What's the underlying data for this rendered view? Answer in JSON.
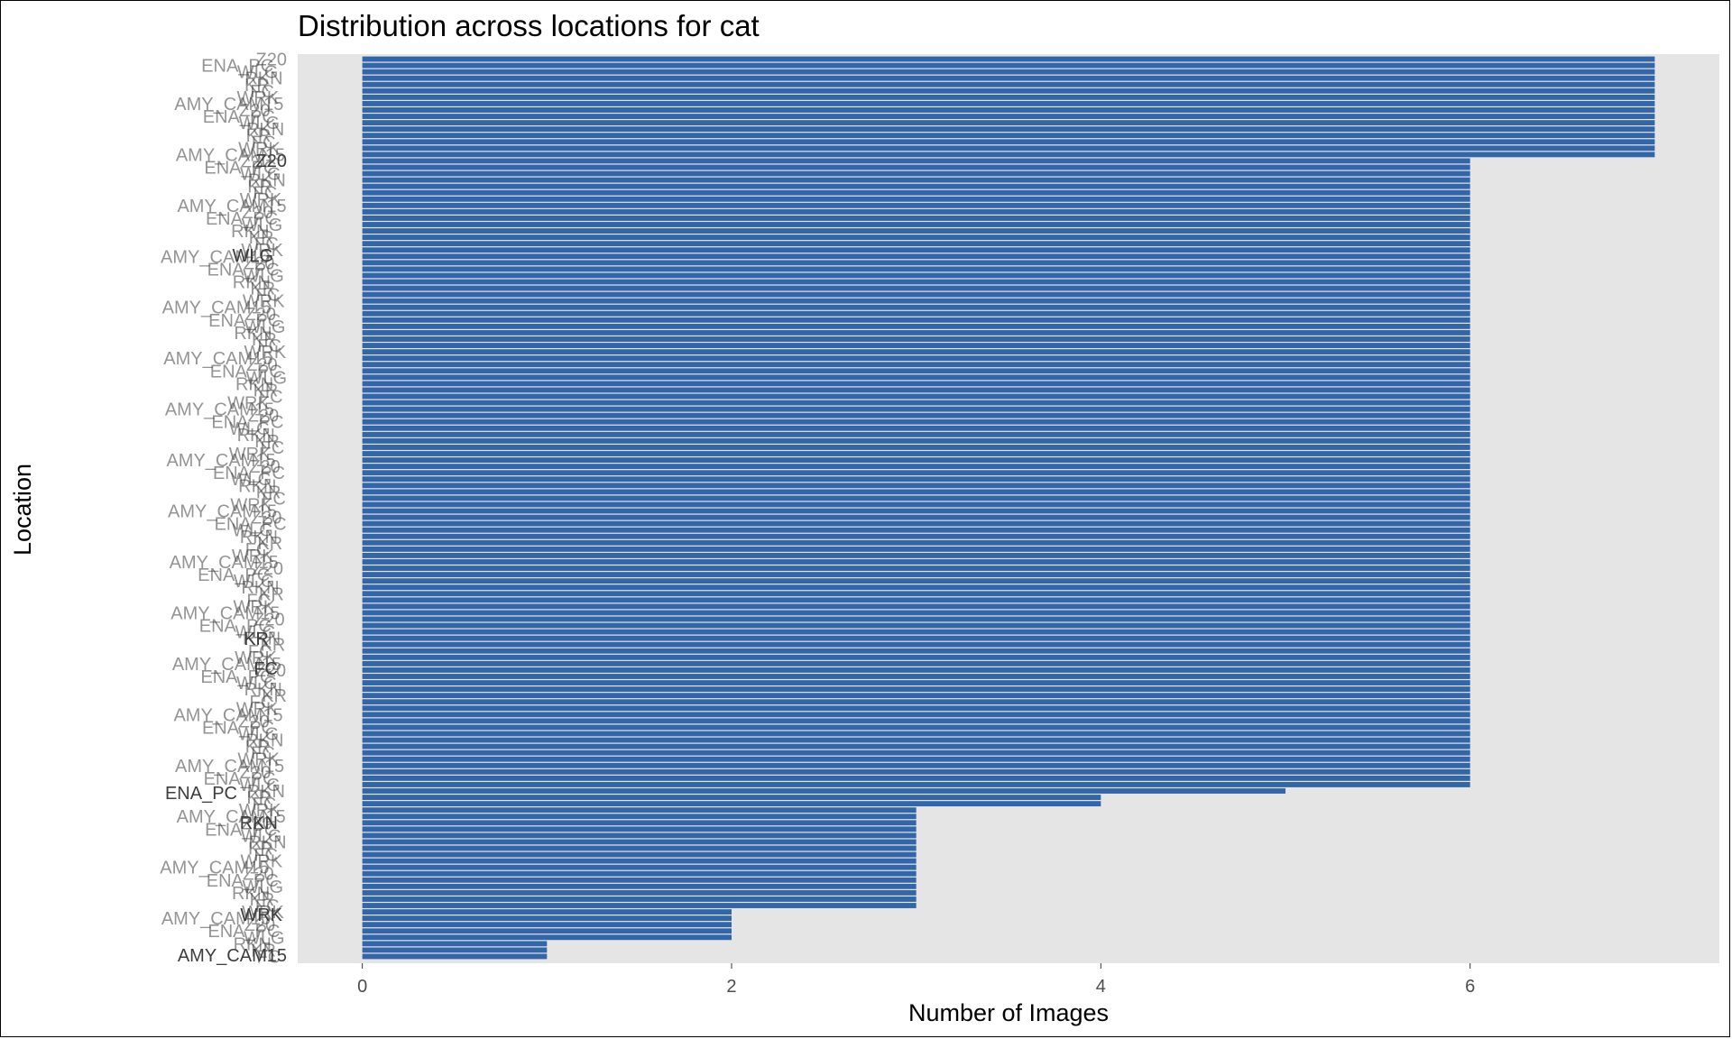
{
  "chart_data": {
    "type": "bar",
    "orientation": "horizontal",
    "title": "Distribution across locations for cat",
    "xlabel": "Number of Images",
    "ylabel": "Location",
    "xlim": [
      -0.35,
      7.35
    ],
    "x_ticks": [
      0,
      2,
      4,
      6
    ],
    "grid": false,
    "bar_color": "#3366a8",
    "panel_color": "#e5e5e5",
    "groups": [
      {
        "value": 7,
        "count": 16
      },
      {
        "value": 6,
        "count": 99
      },
      {
        "value": 5,
        "count": 1
      },
      {
        "value": 4,
        "count": 2
      },
      {
        "value": 3,
        "count": 16
      },
      {
        "value": 2,
        "count": 5
      },
      {
        "value": 1,
        "count": 3
      }
    ],
    "visible_category_labels": [
      "Z20",
      "ENA_PC",
      "WLG",
      "RKN",
      "KR",
      "FC",
      "WRK",
      "AMY_CAM15"
    ]
  }
}
